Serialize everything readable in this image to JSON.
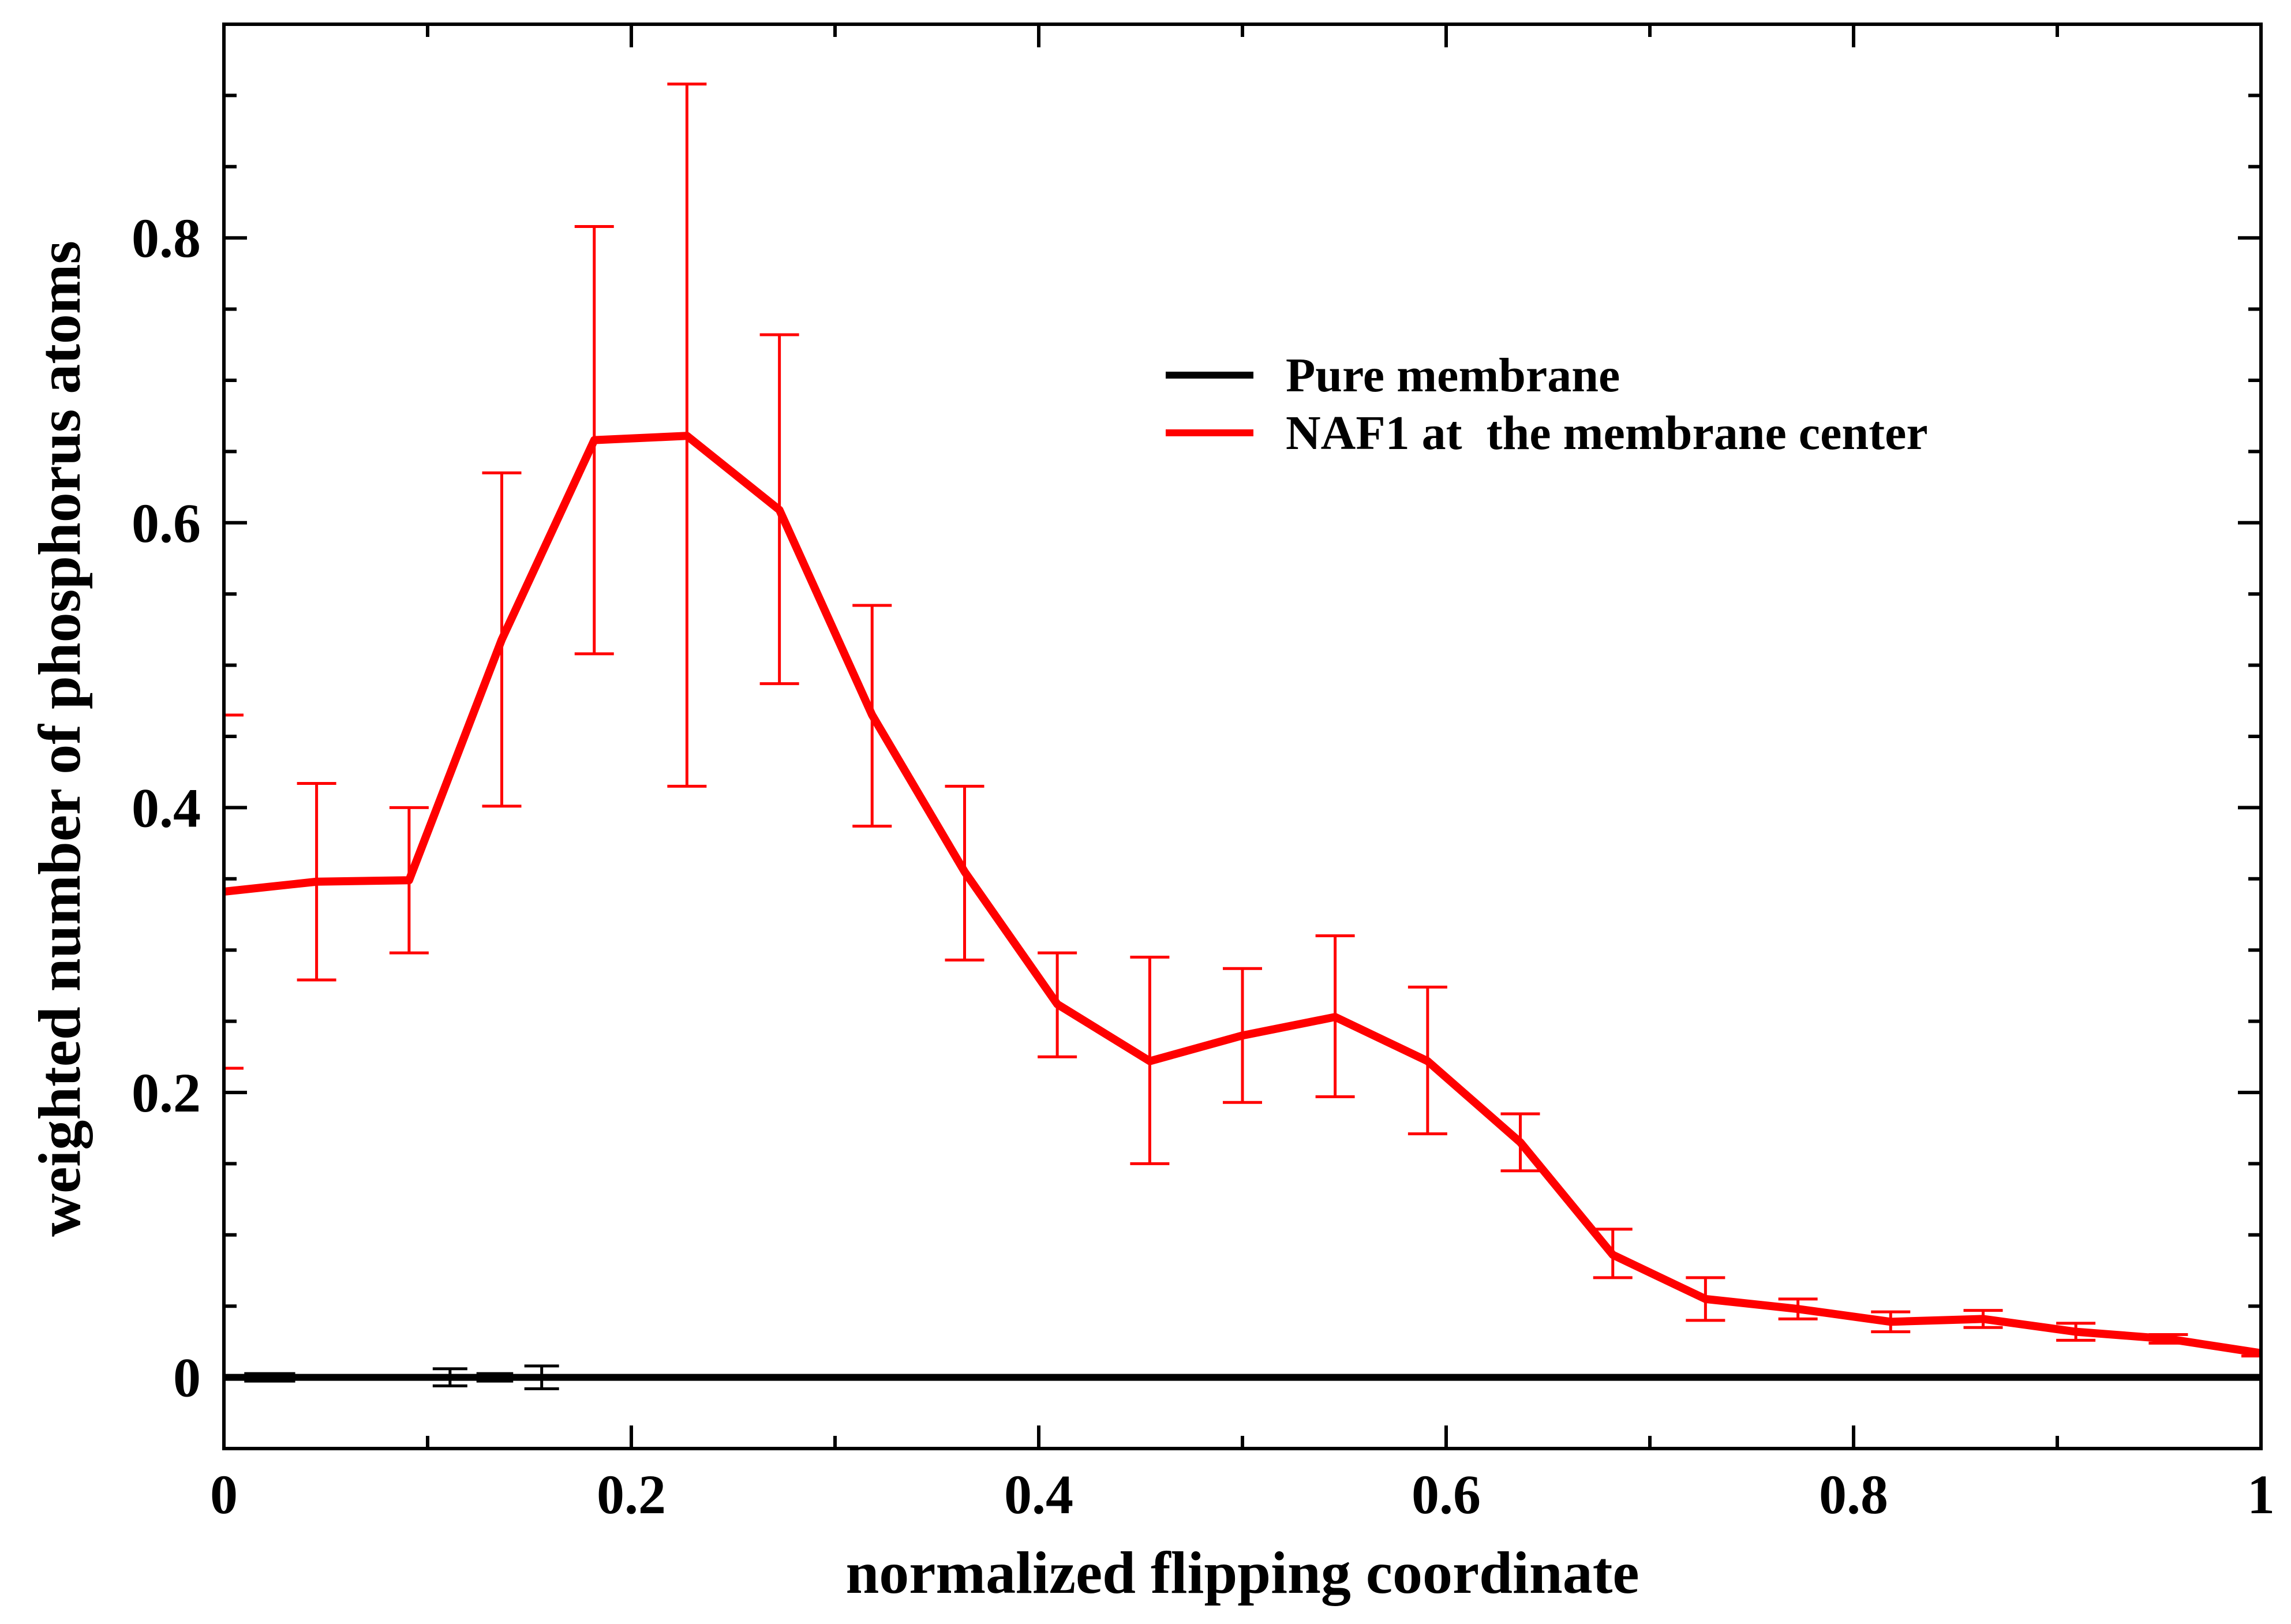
{
  "chart_data": {
    "type": "line",
    "title": "",
    "xlabel": "normalized flipping coordinate",
    "ylabel": "weighted number of phosphorus atoms",
    "xlim": [
      0,
      1
    ],
    "ylim": [
      -0.05,
      0.95
    ],
    "xticks": [
      0,
      0.2,
      0.4,
      0.6,
      0.8,
      1
    ],
    "xtick_labels": [
      "0",
      "0.2",
      "0.4",
      "0.6",
      "0.8",
      "1"
    ],
    "yticks": [
      0,
      0.2,
      0.4,
      0.6,
      0.8
    ],
    "ytick_labels": [
      "0",
      "0.2",
      "0.4",
      "0.6",
      "0.8"
    ],
    "grid": false,
    "legend_position": "top-right",
    "series": [
      {
        "name": "Pure membrane",
        "color": "#000000",
        "x": [
          0,
          0.0455,
          0.0909,
          0.1364,
          0.1818,
          0.2273,
          0.2727,
          0.3182,
          0.3636,
          0.4091,
          0.4545,
          0.5,
          0.5455,
          0.5909,
          0.6364,
          0.6818,
          0.7273,
          0.7727,
          0.8182,
          0.8636,
          0.9091,
          0.9545,
          1
        ],
        "y": [
          0,
          0,
          0,
          0,
          0,
          0,
          0,
          0,
          0,
          0,
          0,
          0,
          0,
          0,
          0,
          0,
          0,
          0,
          0,
          0,
          0,
          0,
          0
        ],
        "error_points": [
          {
            "x": 0.022,
            "y": 0,
            "err": 0.002
          },
          {
            "x": 0.111,
            "y": 0,
            "err": 0.006
          },
          {
            "x": 0.133,
            "y": 0,
            "err": 0.002
          },
          {
            "x": 0.156,
            "y": 0,
            "err": 0.008
          }
        ]
      },
      {
        "name": "NAF1 at  the membrane center",
        "color": "#ff0000",
        "x": [
          0,
          0.0455,
          0.0909,
          0.1364,
          0.1818,
          0.2273,
          0.2727,
          0.3182,
          0.3636,
          0.4091,
          0.4545,
          0.5,
          0.5455,
          0.5909,
          0.6364,
          0.6818,
          0.7273,
          0.7727,
          0.8182,
          0.8636,
          0.9091,
          0.9545,
          1
        ],
        "y": [
          0.341,
          0.348,
          0.349,
          0.518,
          0.658,
          0.661,
          0.609,
          0.465,
          0.355,
          0.262,
          0.222,
          0.24,
          0.253,
          0.222,
          0.165,
          0.086,
          0.055,
          0.048,
          0.039,
          0.041,
          0.032,
          0.027,
          0.017
        ],
        "err_low": [
          0.217,
          0.279,
          0.298,
          0.401,
          0.508,
          0.415,
          0.487,
          0.387,
          0.293,
          0.225,
          0.15,
          0.193,
          0.197,
          0.171,
          0.145,
          0.07,
          0.04,
          0.041,
          0.032,
          0.035,
          0.026,
          0.024,
          0.015
        ],
        "err_high": [
          0.465,
          0.417,
          0.4,
          0.635,
          0.808,
          0.908,
          0.732,
          0.542,
          0.415,
          0.298,
          0.295,
          0.287,
          0.31,
          0.274,
          0.185,
          0.104,
          0.07,
          0.055,
          0.046,
          0.047,
          0.038,
          0.03,
          0.019
        ]
      }
    ]
  }
}
